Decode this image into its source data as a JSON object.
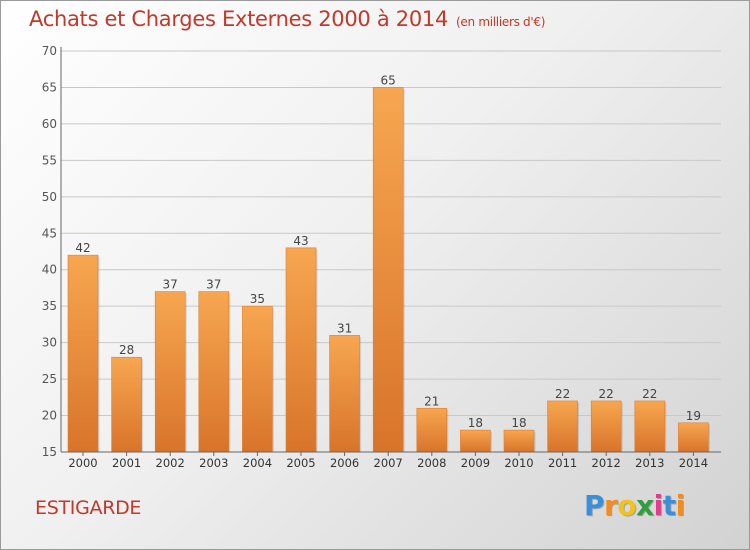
{
  "header": {
    "title": "Achats et Charges Externes 2000 à 2014",
    "unit": "(en milliers d'€)"
  },
  "footer": {
    "commune": "ESTIGARDE",
    "logo": {
      "letters": [
        "P",
        "r",
        "o",
        "x",
        "i",
        "t",
        "i"
      ],
      "colors": [
        "#3a8fd8",
        "#f28c1c",
        "#f2c21c",
        "#2e9e3e",
        "#e23c8f",
        "#3a8fd8",
        "#f28c1c"
      ]
    }
  },
  "chart_data": {
    "type": "bar",
    "categories": [
      "2000",
      "2001",
      "2002",
      "2003",
      "2004",
      "2005",
      "2006",
      "2007",
      "2008",
      "2009",
      "2010",
      "2011",
      "2012",
      "2013",
      "2014"
    ],
    "values": [
      42,
      28,
      37,
      37,
      35,
      43,
      31,
      65,
      21,
      18,
      18,
      22,
      22,
      22,
      19
    ],
    "ylim": [
      15,
      70
    ],
    "yticks": [
      15,
      20,
      25,
      30,
      35,
      40,
      45,
      50,
      55,
      60,
      65,
      70
    ],
    "grid": true,
    "bar_color_top": "#f7a650",
    "bar_color_bottom": "#d8742a",
    "title": "Achats et Charges Externes 2000 à 2014",
    "xlabel": "",
    "ylabel": ""
  }
}
